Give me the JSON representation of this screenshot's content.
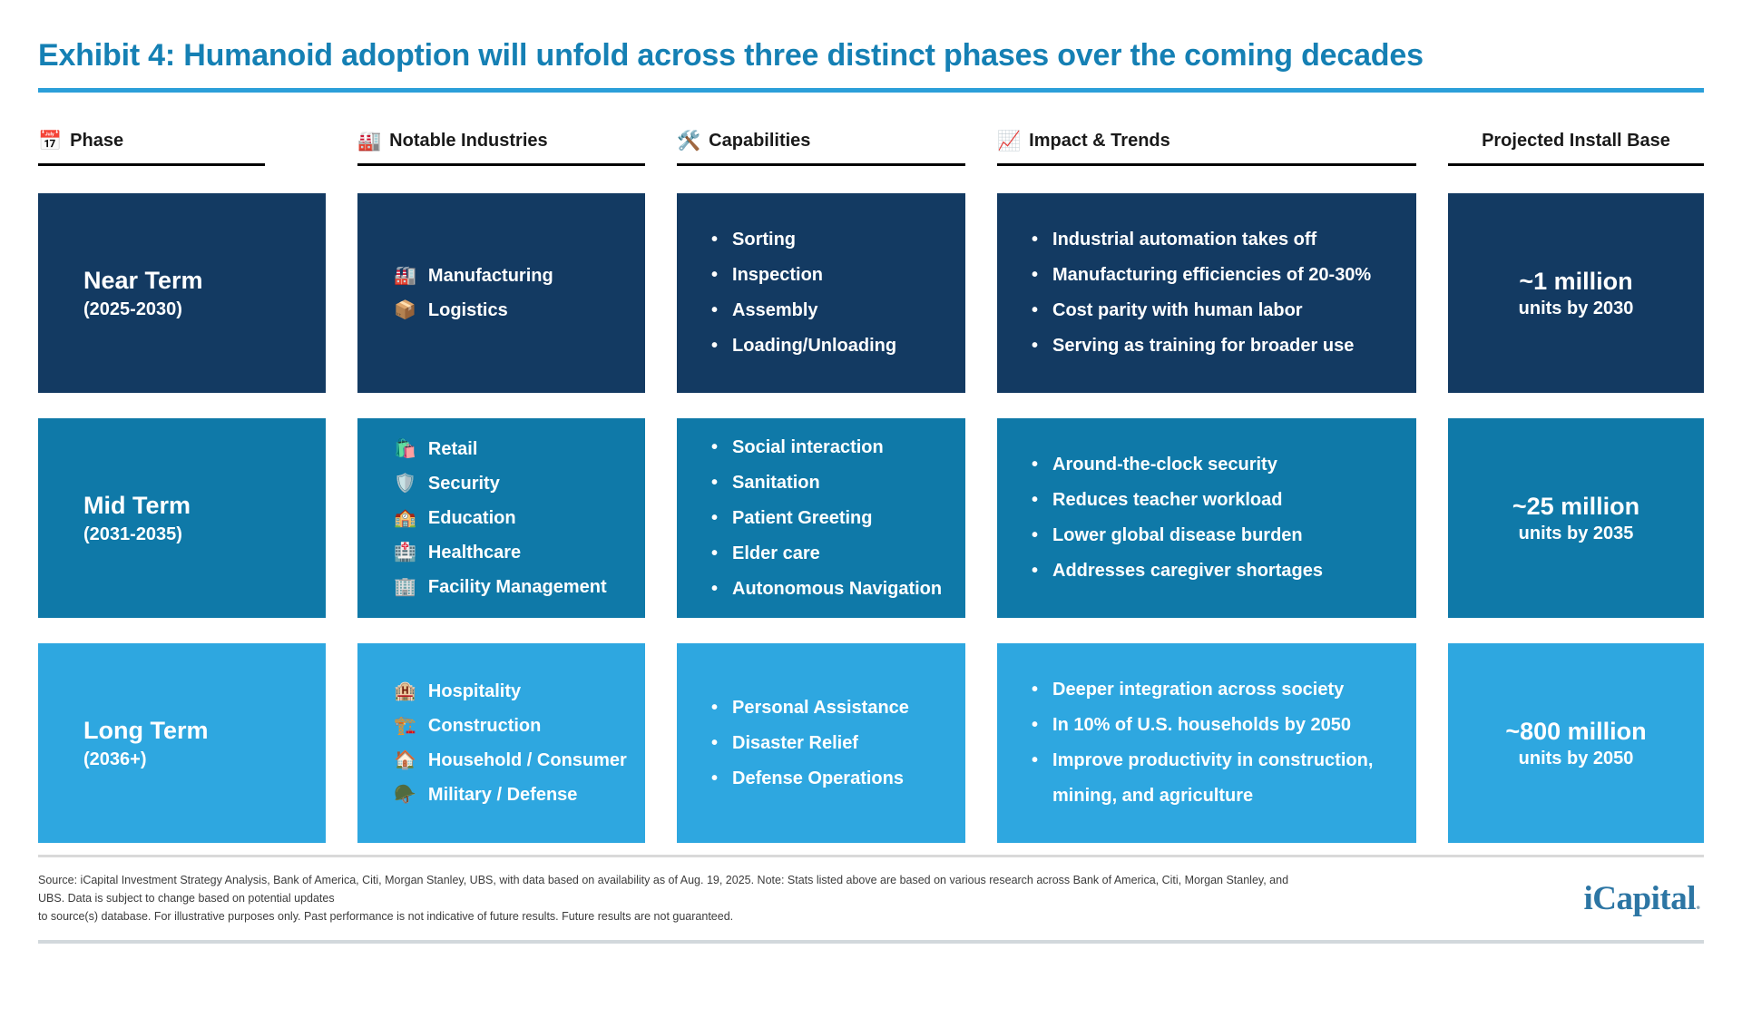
{
  "title": "Exhibit 4: Humanoid adoption will unfold across three distinct phases over the coming decades",
  "columns": [
    {
      "icon": "📅",
      "icon_name": "calendar-icon",
      "label": "Phase"
    },
    {
      "icon": "🏭",
      "icon_name": "factory-icon",
      "label": "Notable Industries"
    },
    {
      "icon": "🛠️",
      "icon_name": "hammer-wrench-icon",
      "label": "Capabilities"
    },
    {
      "icon": "📈",
      "icon_name": "chart-increasing-icon",
      "label": "Impact & Trends"
    },
    {
      "icon": "",
      "icon_name": "",
      "label": "Projected Install Base"
    }
  ],
  "rows": [
    {
      "phase_name": "Near Term",
      "phase_range": "(2025-2030)",
      "color": "#133A62",
      "industries": [
        {
          "icon": "🏭",
          "icon_name": "factory-icon",
          "label": "Manufacturing"
        },
        {
          "icon": "📦",
          "icon_name": "package-icon",
          "label": "Logistics"
        }
      ],
      "capabilities": [
        "Sorting",
        "Inspection",
        "Assembly",
        "Loading/Unloading"
      ],
      "impact": [
        "Industrial automation takes off",
        "Manufacturing efficiencies of 20-30%",
        "Cost parity with human labor",
        "Serving as training for broader use"
      ],
      "install_value": "~1 million",
      "install_sub": "units by 2030"
    },
    {
      "phase_name": "Mid Term",
      "phase_range": "(2031-2035)",
      "color": "#0F79A8",
      "industries": [
        {
          "icon": "🛍️",
          "icon_name": "shopping-bags-icon",
          "label": "Retail"
        },
        {
          "icon": "🛡️",
          "icon_name": "shield-icon",
          "label": "Security"
        },
        {
          "icon": "🏫",
          "icon_name": "school-icon",
          "label": "Education"
        },
        {
          "icon": "🏥",
          "icon_name": "hospital-icon",
          "label": "Healthcare"
        },
        {
          "icon": "🏢",
          "icon_name": "office-building-icon",
          "label": "Facility Management"
        }
      ],
      "capabilities": [
        "Social interaction",
        "Sanitation",
        "Patient Greeting",
        "Elder care",
        "Autonomous Navigation"
      ],
      "impact": [
        "Around-the-clock security",
        "Reduces teacher workload",
        "Lower global disease burden",
        "Addresses caregiver shortages"
      ],
      "install_value": "~25 million",
      "install_sub": "units by 2035"
    },
    {
      "phase_name": "Long Term",
      "phase_range": "(2036+)",
      "color": "#2EA7E0",
      "industries": [
        {
          "icon": "🏨",
          "icon_name": "hotel-icon",
          "label": "Hospitality"
        },
        {
          "icon": "🏗️",
          "icon_name": "crane-icon",
          "label": "Construction"
        },
        {
          "icon": "🏠",
          "icon_name": "house-icon",
          "label": "Household / Consumer"
        },
        {
          "icon": "🪖",
          "icon_name": "military-helmet-icon",
          "label": "Military / Defense"
        }
      ],
      "capabilities": [
        "Personal Assistance",
        "Disaster Relief",
        "Defense Operations"
      ],
      "impact": [
        "Deeper integration across society",
        "In 10% of U.S. households by 2050",
        "Improve productivity in construction, mining, and agriculture"
      ],
      "install_value": "~800 million",
      "install_sub": "units by 2050"
    }
  ],
  "footer": {
    "line1": "Source: iCapital Investment Strategy Analysis, Bank of America, Citi, Morgan Stanley, UBS, with data based on availability as of Aug. 19, 2025. Note: Stats listed above are based on various research across Bank of America, Citi, Morgan Stanley, and UBS. Data is subject to change based on potential updates",
    "line2": "to source(s) database. For illustrative purposes only. Past performance is not indicative of future results. Future results are not guaranteed.",
    "logo": "iCapital",
    "logo_dot": "."
  },
  "colors": {
    "title": "#1580B4",
    "title_rule": "#2B9FD9",
    "near_term": "#133A62",
    "mid_term": "#0F79A8",
    "long_term": "#2EA7E0",
    "logo": "#2D76A4"
  }
}
